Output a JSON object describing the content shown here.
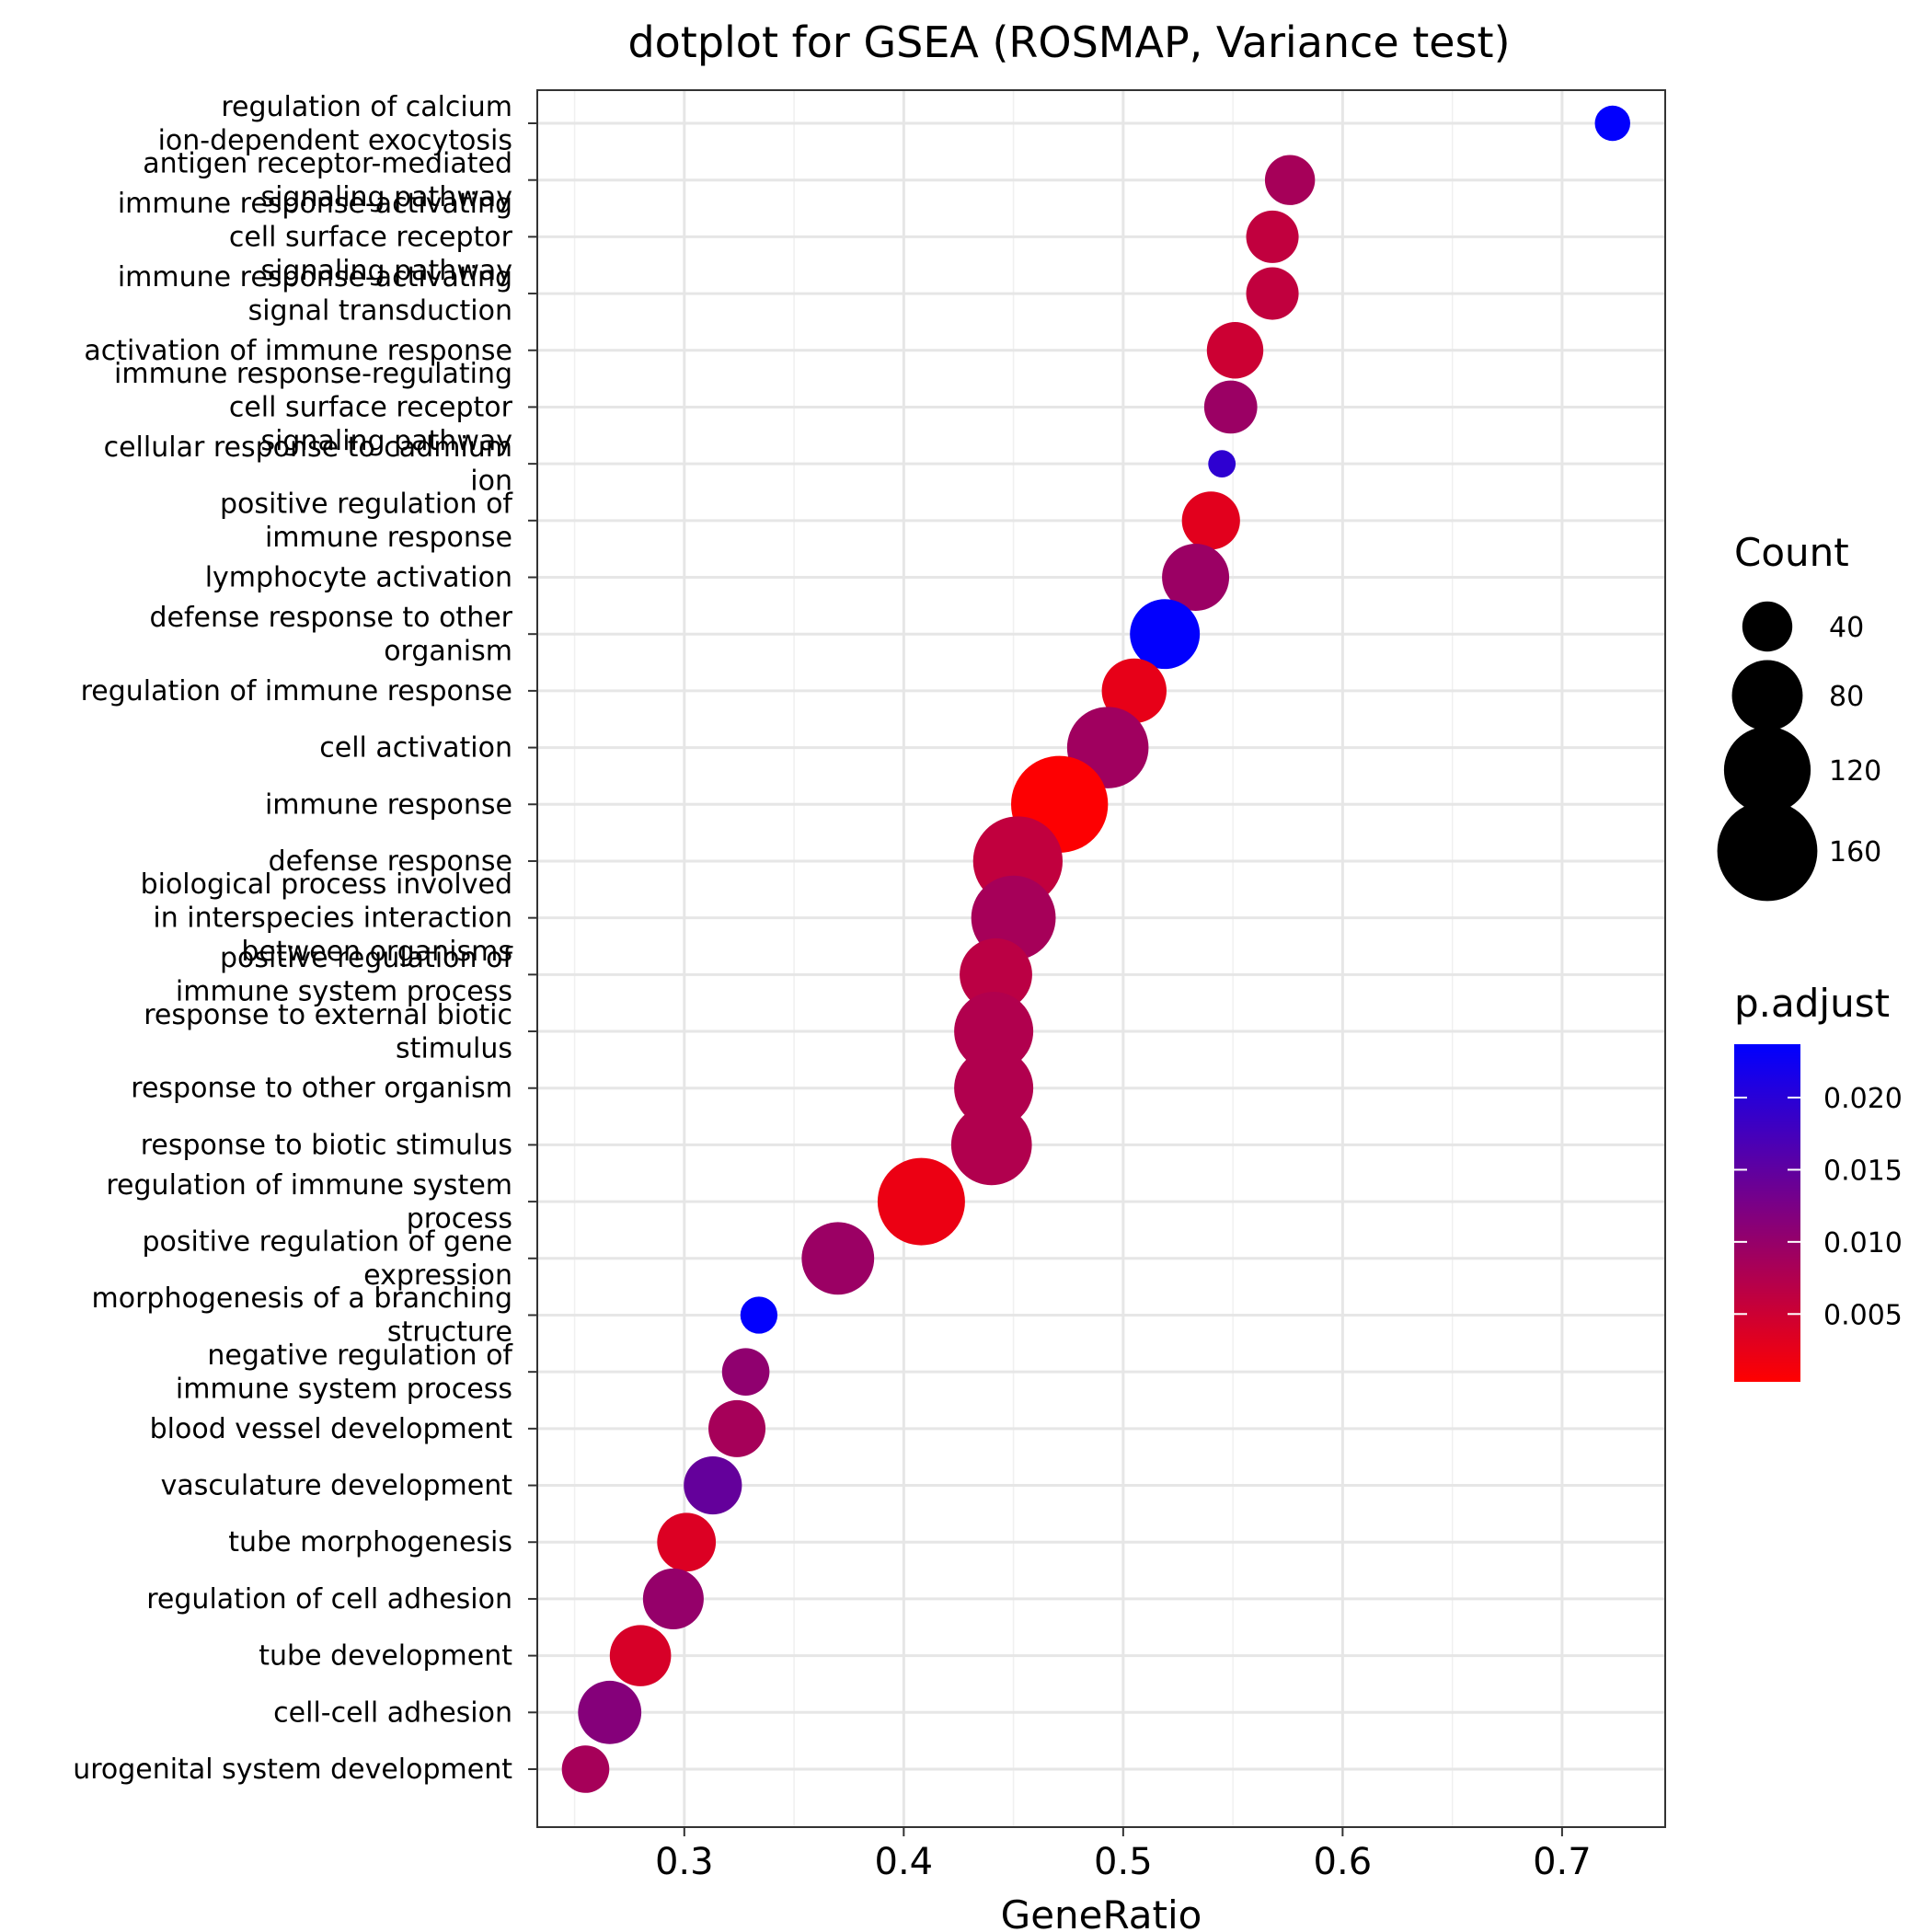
{
  "chart_data": {
    "type": "scatter",
    "title": "dotplot for GSEA (ROSMAP, Variance test)",
    "xlabel": "GeneRatio",
    "ylabel": "",
    "xlim": [
      0.233,
      0.747
    ],
    "xticks": [
      "0.3",
      "0.4",
      "0.5",
      "0.6",
      "0.7"
    ],
    "grid": true,
    "legend_position": "right",
    "size_legend": {
      "title": "Count",
      "values": [
        40,
        80,
        120,
        160
      ],
      "labels": [
        "40",
        "80",
        "120",
        "160"
      ]
    },
    "color_legend": {
      "title": "p.adjust",
      "range": [
        0.0003,
        0.0237
      ],
      "ticks": [
        0.005,
        0.01,
        0.015,
        0.02
      ],
      "tick_labels": [
        "0.005",
        "0.010",
        "0.015",
        "0.020"
      ],
      "low_color": "#ff0000",
      "high_color": "#0000ff"
    },
    "points": [
      {
        "term": "regulation of calcium ion-dependent exocytosis",
        "label_lines": [
          "regulation of calcium",
          "ion-dependent exocytosis"
        ],
        "gene_ratio": 0.723,
        "count": 20,
        "p_adjust": 0.0235
      },
      {
        "term": "antigen receptor-mediated signaling pathway",
        "label_lines": [
          "antigen receptor-mediated",
          "signaling pathway"
        ],
        "gene_ratio": 0.576,
        "count": 40,
        "p_adjust": 0.0085
      },
      {
        "term": "immune response-activating cell surface receptor signaling pathway",
        "label_lines": [
          "immune response-activating",
          "cell surface receptor",
          "signaling pathway"
        ],
        "gene_ratio": 0.568,
        "count": 44,
        "p_adjust": 0.006
      },
      {
        "term": "immune response-activating signal transduction",
        "label_lines": [
          "immune response-activating",
          "signal transduction"
        ],
        "gene_ratio": 0.568,
        "count": 44,
        "p_adjust": 0.006
      },
      {
        "term": "activation of immune response",
        "label_lines": [
          "activation of immune response"
        ],
        "gene_ratio": 0.551,
        "count": 51,
        "p_adjust": 0.005
      },
      {
        "term": "immune response-regulating cell surface receptor signaling pathway",
        "label_lines": [
          "immune response-regulating",
          "cell surface receptor",
          "signaling pathway"
        ],
        "gene_ratio": 0.549,
        "count": 45,
        "p_adjust": 0.0095
      },
      {
        "term": "cellular response to cadmium ion",
        "label_lines": [
          "cellular response to cadmium",
          "ion"
        ],
        "gene_ratio": 0.545,
        "count": 12,
        "p_adjust": 0.0195
      },
      {
        "term": "positive regulation of immune response",
        "label_lines": [
          "positive regulation of",
          "immune response"
        ],
        "gene_ratio": 0.54,
        "count": 54,
        "p_adjust": 0.003
      },
      {
        "term": "lymphocyte activation",
        "label_lines": [
          "lymphocyte activation"
        ],
        "gene_ratio": 0.533,
        "count": 72,
        "p_adjust": 0.0095
      },
      {
        "term": "defense response to other organism",
        "label_lines": [
          "defense response to other",
          "organism"
        ],
        "gene_ratio": 0.519,
        "count": 78,
        "p_adjust": 0.0235
      },
      {
        "term": "regulation of immune response",
        "label_lines": [
          "regulation of immune response"
        ],
        "gene_ratio": 0.505,
        "count": 67,
        "p_adjust": 0.0025
      },
      {
        "term": "cell activation",
        "label_lines": [
          "cell activation"
        ],
        "gene_ratio": 0.493,
        "count": 106,
        "p_adjust": 0.009
      },
      {
        "term": "immune response",
        "label_lines": [
          "immune response"
        ],
        "gene_ratio": 0.471,
        "count": 150,
        "p_adjust": 0.0005
      },
      {
        "term": "defense response",
        "label_lines": [
          "defense response"
        ],
        "gene_ratio": 0.452,
        "count": 128,
        "p_adjust": 0.006
      },
      {
        "term": "biological process involved in interspecies interaction between organisms",
        "label_lines": [
          "biological process involved",
          "in interspecies interaction",
          "between organisms"
        ],
        "gene_ratio": 0.45,
        "count": 114,
        "p_adjust": 0.0085
      },
      {
        "term": "positive regulation of immune system process",
        "label_lines": [
          "positive regulation of",
          "immune system process"
        ],
        "gene_ratio": 0.442,
        "count": 84,
        "p_adjust": 0.0065
      },
      {
        "term": "response to external biotic stimulus",
        "label_lines": [
          "response to external biotic",
          "stimulus"
        ],
        "gene_ratio": 0.441,
        "count": 100,
        "p_adjust": 0.0075
      },
      {
        "term": "response to other organism",
        "label_lines": [
          "response to other organism"
        ],
        "gene_ratio": 0.441,
        "count": 100,
        "p_adjust": 0.0075
      },
      {
        "term": "response to biotic stimulus",
        "label_lines": [
          "response to biotic stimulus"
        ],
        "gene_ratio": 0.44,
        "count": 104,
        "p_adjust": 0.0075
      },
      {
        "term": "regulation of immune system process",
        "label_lines": [
          "regulation of immune system",
          "process"
        ],
        "gene_ratio": 0.408,
        "count": 122,
        "p_adjust": 0.002
      },
      {
        "term": "positive regulation of gene expression",
        "label_lines": [
          "positive regulation of gene",
          "expression"
        ],
        "gene_ratio": 0.37,
        "count": 84,
        "p_adjust": 0.0095
      },
      {
        "term": "morphogenesis of a branching structure",
        "label_lines": [
          "morphogenesis of a branching",
          "structure"
        ],
        "gene_ratio": 0.334,
        "count": 22,
        "p_adjust": 0.0235
      },
      {
        "term": "negative regulation of immune system process",
        "label_lines": [
          "negative regulation of",
          "immune system process"
        ],
        "gene_ratio": 0.328,
        "count": 36,
        "p_adjust": 0.0105
      },
      {
        "term": "blood vessel development",
        "label_lines": [
          "blood vessel development"
        ],
        "gene_ratio": 0.324,
        "count": 52,
        "p_adjust": 0.0085
      },
      {
        "term": "vasculature development",
        "label_lines": [
          "vasculature development"
        ],
        "gene_ratio": 0.313,
        "count": 54,
        "p_adjust": 0.0145
      },
      {
        "term": "tube morphogenesis",
        "label_lines": [
          "tube morphogenesis"
        ],
        "gene_ratio": 0.301,
        "count": 55,
        "p_adjust": 0.0035
      },
      {
        "term": "regulation of cell adhesion",
        "label_lines": [
          "regulation of cell adhesion"
        ],
        "gene_ratio": 0.295,
        "count": 59,
        "p_adjust": 0.01
      },
      {
        "term": "tube development",
        "label_lines": [
          "tube development"
        ],
        "gene_ratio": 0.28,
        "count": 60,
        "p_adjust": 0.004
      },
      {
        "term": "cell-cell adhesion",
        "label_lines": [
          "cell-cell adhesion"
        ],
        "gene_ratio": 0.266,
        "count": 64,
        "p_adjust": 0.0115
      },
      {
        "term": "urogenital system development",
        "label_lines": [
          "urogenital system development"
        ],
        "gene_ratio": 0.255,
        "count": 36,
        "p_adjust": 0.0085
      }
    ]
  }
}
